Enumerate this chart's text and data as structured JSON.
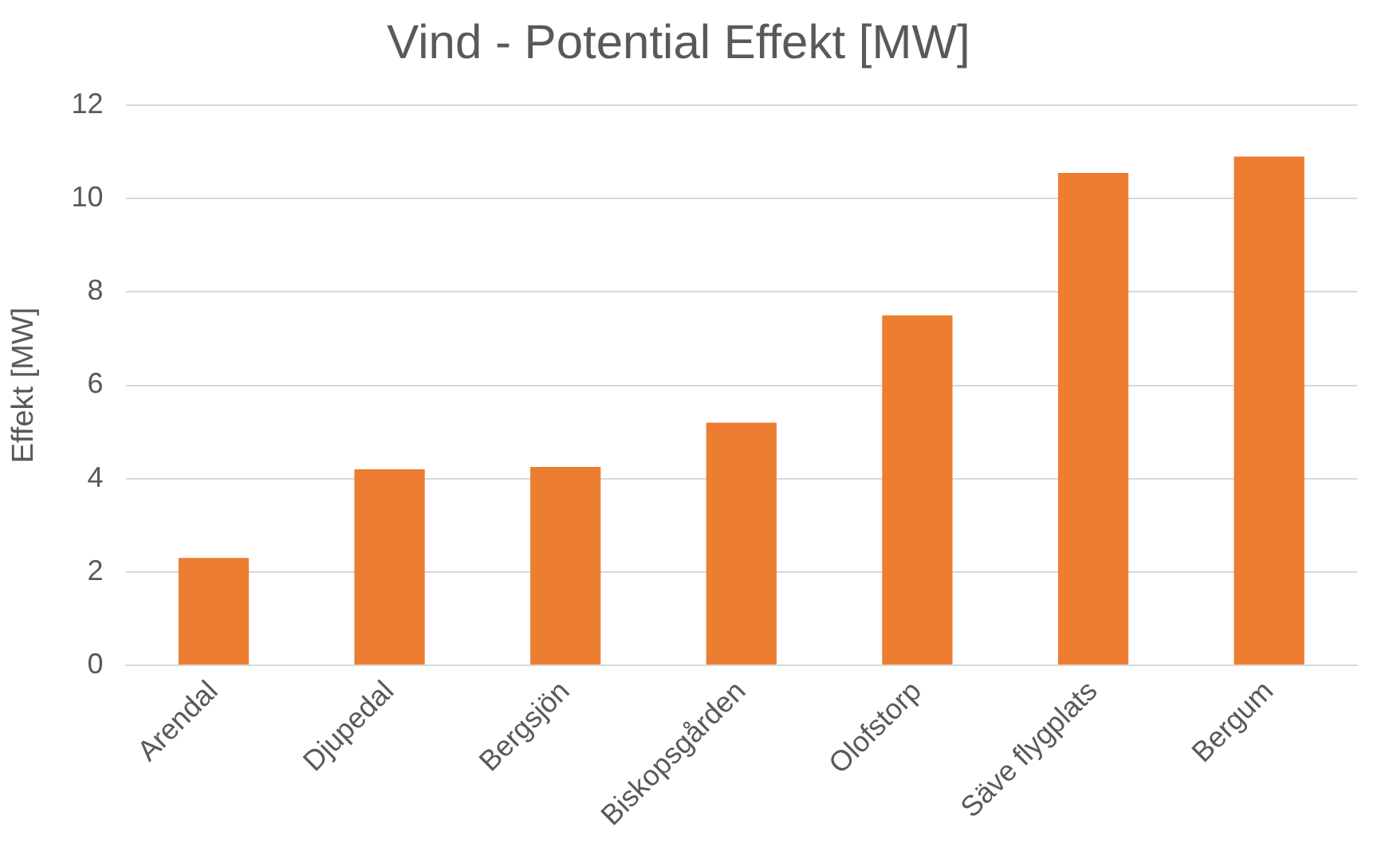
{
  "chart_data": {
    "type": "bar",
    "title": "Vind - Potential Effekt [MW]",
    "ylabel": "Effekt [MW]",
    "categories": [
      "Arendal",
      "Djupedal",
      "Bergsjön",
      "Biskopsgården",
      "Olofstorp",
      "Säve flygplats",
      "Bergum"
    ],
    "values": [
      2.3,
      4.2,
      4.25,
      5.2,
      7.5,
      10.55,
      10.9
    ],
    "color": "#ed7d31",
    "ylim": [
      0,
      12
    ],
    "yticks": [
      0,
      2,
      4,
      6,
      8,
      10,
      12
    ],
    "grid": "y",
    "legend": false
  }
}
